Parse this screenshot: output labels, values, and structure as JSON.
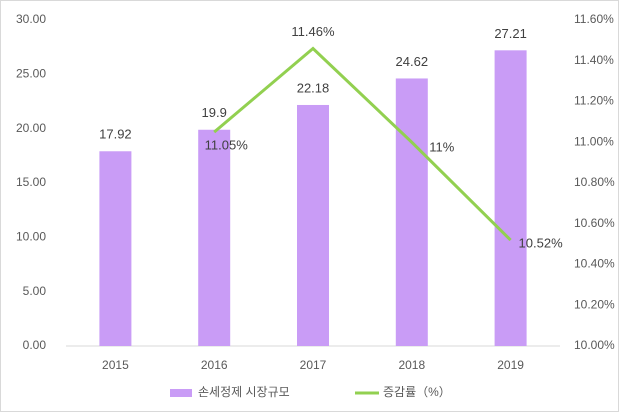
{
  "chart_data": {
    "type": "bar_line",
    "categories": [
      "2015",
      "2016",
      "2017",
      "2018",
      "2019"
    ],
    "series": [
      {
        "name": "손세정제 시장규모",
        "color": "#c99cf6",
        "type": "bar",
        "values": [
          17.92,
          19.9,
          22.18,
          24.62,
          27.21
        ]
      },
      {
        "name": "증감률（%）",
        "color": "#92d050",
        "type": "line",
        "axis": "y2",
        "values": [
          null,
          11.05,
          11.46,
          11.0,
          10.52
        ],
        "value_labels": [
          null,
          "11.05%",
          "11.46%",
          "11%",
          "10.52%"
        ]
      }
    ],
    "ylim": [
      0,
      30
    ],
    "yticks": [
      {
        "value": 0,
        "label": "0.00"
      },
      {
        "value": 5,
        "label": "5.00"
      },
      {
        "value": 10,
        "label": "10.00"
      },
      {
        "value": 15,
        "label": "15.00"
      },
      {
        "value": 20,
        "label": "20.00"
      },
      {
        "value": 25,
        "label": "25.00"
      },
      {
        "value": 30,
        "label": "30.00"
      }
    ],
    "y2lim": [
      10,
      11.6
    ],
    "y2ticks": [
      {
        "value": 10,
        "label": "10.00%"
      },
      {
        "value": 10.2,
        "label": "10.20%"
      },
      {
        "value": 10.4,
        "label": "10.40%"
      },
      {
        "value": 10.6,
        "label": "10.60%"
      },
      {
        "value": 10.8,
        "label": "10.80%"
      },
      {
        "value": 11,
        "label": "11.00%"
      },
      {
        "value": 11.2,
        "label": "11.20%"
      },
      {
        "value": 11.4,
        "label": "11.40%"
      },
      {
        "value": 11.6,
        "label": "11.60%"
      }
    ],
    "legend": "bottom"
  }
}
